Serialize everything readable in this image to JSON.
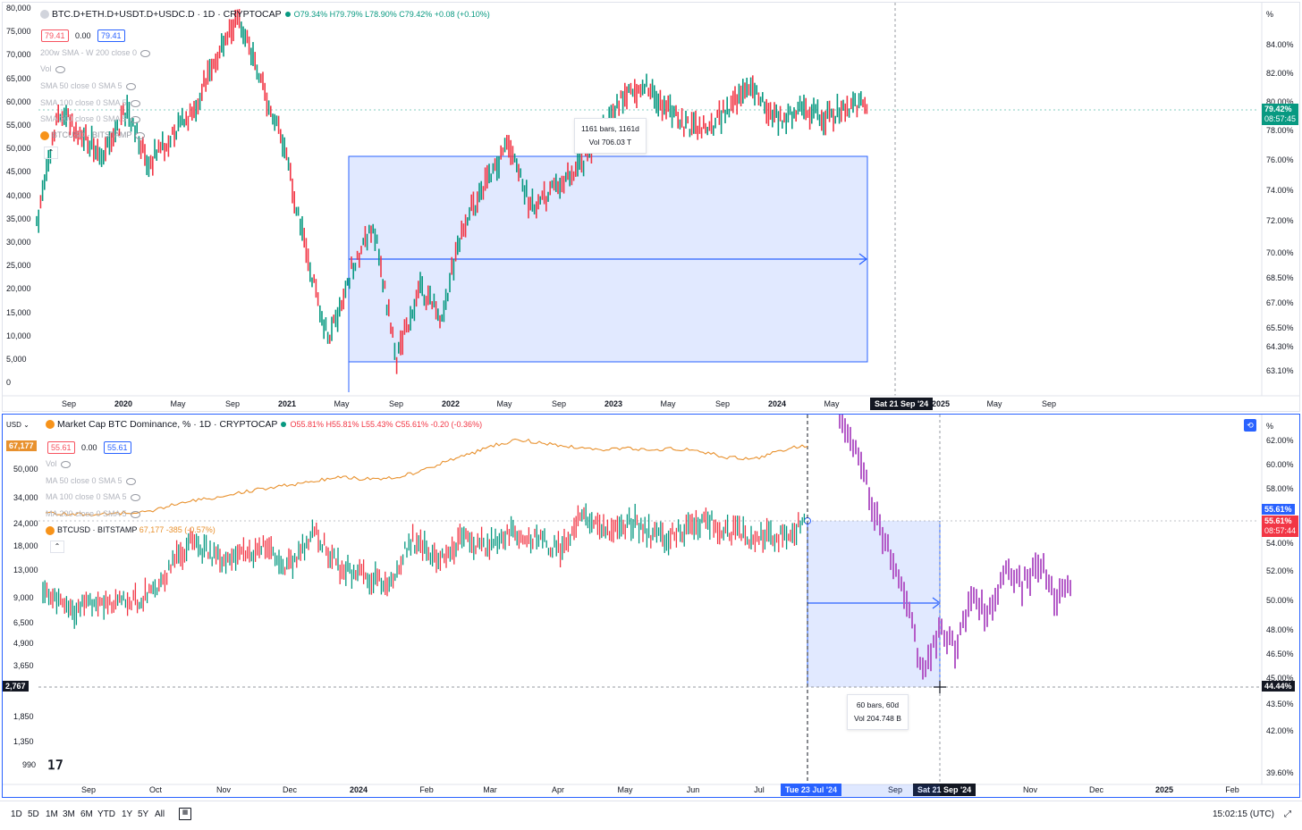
{
  "top": {
    "symbol": "BTC.D+ETH.D+USDT.D+USDC.D · 1D · CRYPTOCAP",
    "ohlc": "O79.34% H79.79% L78.90% C79.42% +0.08 (+0.10%)",
    "buttons": [
      "79.41",
      "0.00",
      "79.41"
    ],
    "indicators": [
      "200w SMA - W 200 close 0",
      "Vol",
      "SMA 50 close 0 SMA 5",
      "SMA 100 close 0 SMA 5",
      "SMA 200 close 0 SMA 5",
      "BTCUSD · BITSTAMP"
    ],
    "left_axis": [
      "80,000",
      "75,000",
      "70,000",
      "65,000",
      "60,000",
      "55,000",
      "50,000",
      "45,000",
      "40,000",
      "35,000",
      "30,000",
      "25,000",
      "20,000",
      "15,000",
      "10,000",
      "5,000",
      "0"
    ],
    "right_axis": [
      "%",
      "84.00%",
      "82.00%",
      "80.00%",
      "78.00%",
      "76.00%",
      "74.00%",
      "72.00%",
      "70.00%",
      "68.50%",
      "67.00%",
      "65.50%",
      "64.30%",
      "63.10%"
    ],
    "price_tag": "79.42%",
    "price_time": "08:57:45",
    "x_axis": [
      "Sep",
      "2020",
      "May",
      "Sep",
      "2021",
      "May",
      "Sep",
      "2022",
      "May",
      "Sep",
      "2023",
      "May",
      "Sep",
      "2024",
      "May",
      "Sat 21 Sep '24",
      "2025",
      "May",
      "Sep"
    ],
    "measure": {
      "bars": "1161 bars, 1161d",
      "vol": "Vol 706.03 T"
    },
    "date_tag": "Sat 21 Sep '24"
  },
  "bottom": {
    "currency": "USD",
    "symbol": "Market Cap BTC Dominance, % · 1D · CRYPTOCAP",
    "ohlc": "O55.81% H55.81% L55.43% C55.61% -0.20 (-0.36%)",
    "left_tag": "67,177",
    "buttons": [
      "55.61",
      "0.00",
      "55.61"
    ],
    "indicators": [
      "Vol",
      "MA 50 close 0 SMA 5",
      "MA 100 close 0 SMA 5",
      "MA 200 close 0 SMA 5"
    ],
    "btc_legend": "BTCUSD · BITSTAMP",
    "btc_value": "67,177 -385 (-0.57%)",
    "left_axis": [
      "50,000",
      "34,000",
      "24,000",
      "18,000",
      "13,000",
      "9,000",
      "6,500",
      "4,900",
      "3,650",
      "1,850",
      "1,350",
      "990"
    ],
    "crosshair_price": "2,767",
    "right_axis": [
      "%",
      "62.00%",
      "60.00%",
      "58.00%",
      "54.00%",
      "52.00%",
      "50.00%",
      "48.00%",
      "46.50%",
      "45.00%",
      "43.50%",
      "42.00%",
      "39.60%"
    ],
    "tag_blue": "55.61%",
    "tag_red": "55.61%",
    "tag_red_time": "08:57:44",
    "tag_cross": "44.44%",
    "x_axis": [
      "Sep",
      "Oct",
      "Nov",
      "Dec",
      "2024",
      "Feb",
      "Mar",
      "Apr",
      "May",
      "Jun",
      "Jul",
      "Tue 23 Jul '24",
      "Sep",
      "Sat 21 Sep '24",
      "Nov",
      "Dec",
      "2025",
      "Feb"
    ],
    "measure": {
      "bars": "60 bars, 60d",
      "vol": "Vol 204.748 B"
    }
  },
  "footer": {
    "ranges": [
      "1D",
      "5D",
      "1M",
      "3M",
      "6M",
      "YTD",
      "1Y",
      "5Y",
      "All"
    ],
    "clock": "15:02:15 (UTC)"
  },
  "colors": {
    "up": "#089981",
    "down": "#f23645",
    "measure": "#2962ff",
    "btc": "#e8912e",
    "dominance": "#b45cc8"
  }
}
